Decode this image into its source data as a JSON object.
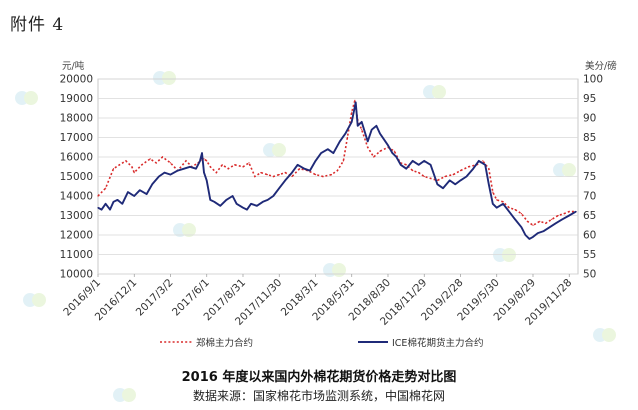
{
  "header": {
    "attachment_label": "附件 4"
  },
  "chart_data": {
    "type": "line",
    "title": "2016 年度以来国内外棉花期货价格走势对比图",
    "source": "数据来源：国家棉花市场监测系统，中国棉花网",
    "left_axis": {
      "unit": "元/吨",
      "ylim": [
        10000,
        20000
      ],
      "ticks": [
        "10000",
        "11000",
        "12000",
        "13000",
        "14000",
        "15000",
        "16000",
        "17000",
        "18000",
        "19000",
        "20000"
      ]
    },
    "right_axis": {
      "unit": "美分/磅",
      "ylim": [
        50,
        100
      ],
      "ticks": [
        "50",
        "55",
        "60",
        "65",
        "70",
        "75",
        "80",
        "85",
        "90",
        "95",
        "100"
      ]
    },
    "x_tick_labels": [
      "2016/9/1",
      "2016/12/1",
      "2017/3/2",
      "2017/6/1",
      "2017/8/31",
      "2017/11/30",
      "2018/3/1",
      "2018/5/31",
      "2018/8/30",
      "2018/11/29",
      "2019/2/28",
      "2019/5/30",
      "2019/8/29",
      "2019/11/28"
    ],
    "grid": true,
    "legend_position": "bottom",
    "series": [
      {
        "name": "郑棉主力合约",
        "axis": "left",
        "color": "#d92b2b",
        "dash": "dotted",
        "values": [
          [
            "2016/9/1",
            14000
          ],
          [
            "2016/9/20",
            14400
          ],
          [
            "2016/10/10",
            15400
          ],
          [
            "2016/10/25",
            15600
          ],
          [
            "2016/11/10",
            15800
          ],
          [
            "2016/11/25",
            15500
          ],
          [
            "2016/12/1",
            15200
          ],
          [
            "2016/12/20",
            15600
          ],
          [
            "2017/1/10",
            15900
          ],
          [
            "2017/1/25",
            15700
          ],
          [
            "2017/2/10",
            16000
          ],
          [
            "2017/3/2",
            15700
          ],
          [
            "2017/3/20",
            15300
          ],
          [
            "2017/4/10",
            15800
          ],
          [
            "2017/4/25",
            15500
          ],
          [
            "2017/5/10",
            15700
          ],
          [
            "2017/5/25",
            15900
          ],
          [
            "2017/6/1",
            15800
          ],
          [
            "2017/6/10",
            15500
          ],
          [
            "2017/6/25",
            15200
          ],
          [
            "2017/7/10",
            15600
          ],
          [
            "2017/7/25",
            15400
          ],
          [
            "2017/8/10",
            15600
          ],
          [
            "2017/8/31",
            15500
          ],
          [
            "2017/9/15",
            15700
          ],
          [
            "2017/9/30",
            15000
          ],
          [
            "2017/10/15",
            15200
          ],
          [
            "2017/10/31",
            15100
          ],
          [
            "2017/11/15",
            15000
          ],
          [
            "2017/11/30",
            15100
          ],
          [
            "2017/12/15",
            15200
          ],
          [
            "2018/1/1",
            15000
          ],
          [
            "2018/1/20",
            15400
          ],
          [
            "2018/2/10",
            15300
          ],
          [
            "2018/3/1",
            15100
          ],
          [
            "2018/3/20",
            15000
          ],
          [
            "2018/4/10",
            15100
          ],
          [
            "2018/4/25",
            15300
          ],
          [
            "2018/5/10",
            15800
          ],
          [
            "2018/5/20",
            17000
          ],
          [
            "2018/5/31",
            18300
          ],
          [
            "2018/6/8",
            18900
          ],
          [
            "2018/6/15",
            17900
          ],
          [
            "2018/6/25",
            17400
          ],
          [
            "2018/7/10",
            16500
          ],
          [
            "2018/7/25",
            16000
          ],
          [
            "2018/8/10",
            16300
          ],
          [
            "2018/8/30",
            16500
          ],
          [
            "2018/9/15",
            16300
          ],
          [
            "2018/9/30",
            15700
          ],
          [
            "2018/10/15",
            15600
          ],
          [
            "2018/10/31",
            15300
          ],
          [
            "2018/11/15",
            15200
          ],
          [
            "2018/11/29",
            15000
          ],
          [
            "2018/12/15",
            14900
          ],
          [
            "2019/1/1",
            14800
          ],
          [
            "2019/1/20",
            15000
          ],
          [
            "2019/2/10",
            15100
          ],
          [
            "2019/2/28",
            15300
          ],
          [
            "2019/3/20",
            15500
          ],
          [
            "2019/4/10",
            15600
          ],
          [
            "2019/4/25",
            15800
          ],
          [
            "2019/5/10",
            15400
          ],
          [
            "2019/5/20",
            14200
          ],
          [
            "2019/5/30",
            13800
          ],
          [
            "2019/6/15",
            13700
          ],
          [
            "2019/6/30",
            13400
          ],
          [
            "2019/7/15",
            13300
          ],
          [
            "2019/7/31",
            13100
          ],
          [
            "2019/8/15",
            12700
          ],
          [
            "2019/8/29",
            12500
          ],
          [
            "2019/9/15",
            12700
          ],
          [
            "2019/9/30",
            12600
          ],
          [
            "2019/10/15",
            12800
          ],
          [
            "2019/10/31",
            13000
          ],
          [
            "2019/11/15",
            13100
          ],
          [
            "2019/11/28",
            13200
          ],
          [
            "2019/12/15",
            13200
          ]
        ]
      },
      {
        "name": "ICE棉花期货主力合约",
        "axis": "right",
        "color": "#1f2a78",
        "dash": "solid",
        "values": [
          [
            "2016/9/1",
            67
          ],
          [
            "2016/9/10",
            66.5
          ],
          [
            "2016/9/20",
            68
          ],
          [
            "2016/10/1",
            66.5
          ],
          [
            "2016/10/10",
            68.5
          ],
          [
            "2016/10/20",
            69
          ],
          [
            "2016/11/1",
            68
          ],
          [
            "2016/11/15",
            71
          ],
          [
            "2016/12/1",
            70
          ],
          [
            "2016/12/15",
            71.5
          ],
          [
            "2017/1/1",
            70.5
          ],
          [
            "2017/1/15",
            73
          ],
          [
            "2017/2/1",
            75
          ],
          [
            "2017/2/15",
            76
          ],
          [
            "2017/3/2",
            75.5
          ],
          [
            "2017/3/20",
            76.5
          ],
          [
            "2017/4/5",
            77
          ],
          [
            "2017/4/20",
            77.5
          ],
          [
            "2017/5/5",
            77
          ],
          [
            "2017/5/15",
            79
          ],
          [
            "2017/5/20",
            81
          ],
          [
            "2017/5/25",
            76
          ],
          [
            "2017/6/1",
            74
          ],
          [
            "2017/6/10",
            69
          ],
          [
            "2017/6/20",
            68.5
          ],
          [
            "2017/7/5",
            67.5
          ],
          [
            "2017/7/20",
            69
          ],
          [
            "2017/8/5",
            70
          ],
          [
            "2017/8/15",
            68
          ],
          [
            "2017/8/31",
            67
          ],
          [
            "2017/9/10",
            66.5
          ],
          [
            "2017/9/20",
            68
          ],
          [
            "2017/10/5",
            67.5
          ],
          [
            "2017/10/20",
            68.5
          ],
          [
            "2017/11/1",
            69
          ],
          [
            "2017/11/15",
            70
          ],
          [
            "2017/11/30",
            72
          ],
          [
            "2017/12/15",
            74
          ],
          [
            "2018/1/1",
            76
          ],
          [
            "2018/1/15",
            78
          ],
          [
            "2018/2/1",
            77
          ],
          [
            "2018/2/15",
            76.5
          ],
          [
            "2018/3/1",
            79
          ],
          [
            "2018/3/15",
            81
          ],
          [
            "2018/4/1",
            82
          ],
          [
            "2018/4/15",
            81
          ],
          [
            "2018/5/1",
            84
          ],
          [
            "2018/5/15",
            86
          ],
          [
            "2018/5/31",
            89
          ],
          [
            "2018/6/10",
            94
          ],
          [
            "2018/6/15",
            88
          ],
          [
            "2018/6/25",
            89
          ],
          [
            "2018/7/10",
            84
          ],
          [
            "2018/7/20",
            87
          ],
          [
            "2018/8/1",
            88
          ],
          [
            "2018/8/10",
            86
          ],
          [
            "2018/8/30",
            83
          ],
          [
            "2018/9/10",
            81
          ],
          [
            "2018/9/20",
            80
          ],
          [
            "2018/10/1",
            78
          ],
          [
            "2018/10/15",
            77
          ],
          [
            "2018/10/31",
            79
          ],
          [
            "2018/11/15",
            78
          ],
          [
            "2018/11/29",
            79
          ],
          [
            "2018/12/15",
            78
          ],
          [
            "2019/1/1",
            73
          ],
          [
            "2019/1/15",
            72
          ],
          [
            "2019/2/1",
            74
          ],
          [
            "2019/2/15",
            73
          ],
          [
            "2019/2/28",
            74
          ],
          [
            "2019/3/15",
            75
          ],
          [
            "2019/4/1",
            77
          ],
          [
            "2019/4/15",
            79
          ],
          [
            "2019/5/1",
            78
          ],
          [
            "2019/5/10",
            73
          ],
          [
            "2019/5/20",
            68
          ],
          [
            "2019/5/30",
            67
          ],
          [
            "2019/6/15",
            68
          ],
          [
            "2019/6/30",
            66
          ],
          [
            "2019/7/15",
            64
          ],
          [
            "2019/7/31",
            62
          ],
          [
            "2019/8/10",
            60
          ],
          [
            "2019/8/20",
            59
          ],
          [
            "2019/8/29",
            59.5
          ],
          [
            "2019/9/10",
            60.5
          ],
          [
            "2019/9/25",
            61
          ],
          [
            "2019/10/10",
            62
          ],
          [
            "2019/10/25",
            63
          ],
          [
            "2019/11/10",
            64
          ],
          [
            "2019/11/28",
            65
          ],
          [
            "2019/12/15",
            66
          ]
        ]
      }
    ]
  }
}
